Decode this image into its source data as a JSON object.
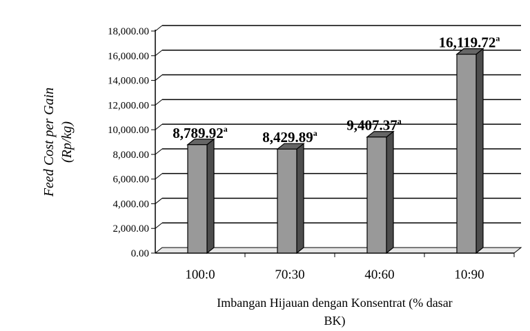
{
  "chart_data": {
    "type": "bar",
    "ylabel_line1": "Feed Cost per Gain",
    "ylabel_line2": "(Rp/kg)",
    "xlabel_line1": "Imbangan Hijauan dengan Konsentrat (% dasar",
    "xlabel_line2": "BK)",
    "categories": [
      "100:0",
      "70:30",
      "40:60",
      "10:90"
    ],
    "values": [
      8789.92,
      8429.89,
      9407.37,
      16119.72
    ],
    "data_labels": [
      "8,789.92",
      "8,429.89",
      "9,407.37",
      "16,119.72"
    ],
    "superscripts": [
      "a",
      "a",
      "a",
      "a"
    ],
    "yticks": [
      "0.00",
      "2,000.00",
      "4,000.00",
      "6,000.00",
      "8,000.00",
      "10,000.00",
      "12,000.00",
      "14,000.00",
      "16,000.00",
      "18,000.00"
    ],
    "ylim": [
      0,
      18000
    ],
    "grid": true,
    "bar_color": "#999999",
    "bar_side_color": "#4d4d4d",
    "bar_top_color": "#666666"
  }
}
